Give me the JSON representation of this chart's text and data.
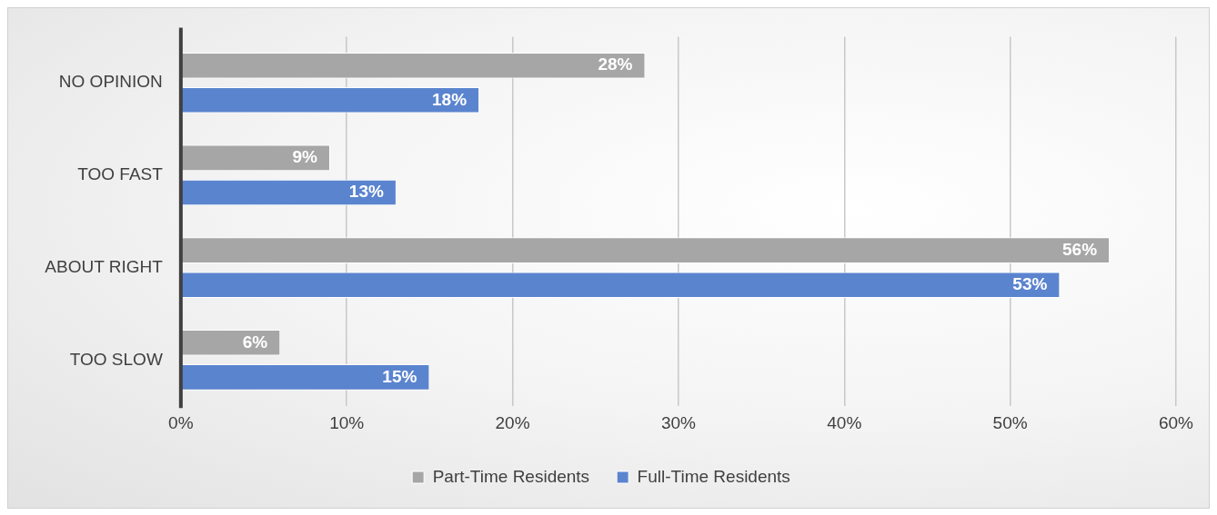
{
  "chart_data": {
    "type": "bar",
    "orientation": "horizontal",
    "categories": [
      "NO OPINION",
      "TOO FAST",
      "ABOUT RIGHT",
      "TOO SLOW"
    ],
    "series": [
      {
        "name": "Part-Time Residents",
        "color": "#a6a6a6",
        "values": [
          28,
          9,
          56,
          6
        ],
        "value_labels": [
          "28%",
          "9%",
          "56%",
          "6%"
        ]
      },
      {
        "name": "Full-Time Residents",
        "color": "#5b84cf",
        "values": [
          18,
          13,
          53,
          15
        ],
        "value_labels": [
          "18%",
          "13%",
          "53%",
          "15%"
        ]
      }
    ],
    "xlim": [
      0,
      60
    ],
    "xticks": [
      {
        "value": 0,
        "label": "0%"
      },
      {
        "value": 10,
        "label": "10%"
      },
      {
        "value": 20,
        "label": "20%"
      },
      {
        "value": 30,
        "label": "30%"
      },
      {
        "value": 40,
        "label": "40%"
      },
      {
        "value": 50,
        "label": "50%"
      },
      {
        "value": 60,
        "label": "60%"
      }
    ],
    "grid": "x",
    "legend": "bottom"
  }
}
